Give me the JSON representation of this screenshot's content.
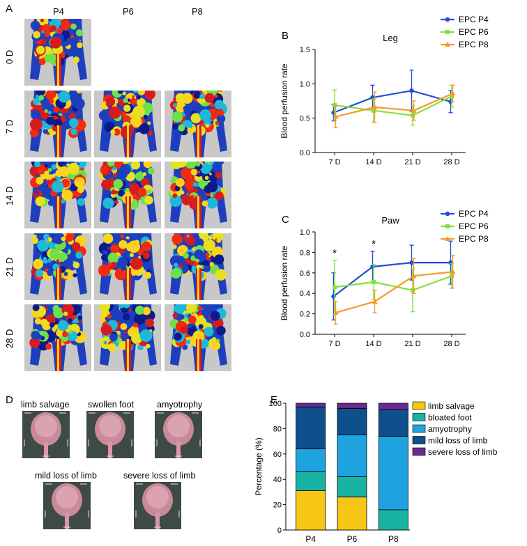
{
  "panels": {
    "A": {
      "letter": "A",
      "columns": [
        "P4",
        "P6",
        "P8"
      ],
      "rows": [
        "0 D",
        "7 D",
        "14 D",
        "21 D",
        "28 D"
      ]
    },
    "D": {
      "letter": "D",
      "labels": [
        "limb salvage",
        "swollen foot",
        "amyotrophy",
        "mild loss of limb",
        "severe loss of limb"
      ]
    }
  },
  "colors": {
    "p4": "#1f4fd6",
    "p6": "#86e03a",
    "p8": "#f79a2a",
    "limb_salvage": "#f7c615",
    "bloated_foot": "#17b3a3",
    "amyotrophy": "#1fa2e0",
    "mild_loss": "#0e4f8c",
    "severe_loss": "#6a2a8f"
  },
  "chart_data": [
    {
      "id": "B",
      "letter": "B",
      "type": "line",
      "title": "Leg",
      "ylabel": "Blood perfusion rate",
      "categories": [
        "7 D",
        "14 D",
        "21 D",
        "28 D"
      ],
      "ylim": [
        0,
        1.5
      ],
      "yticks": [
        "0.0",
        "0.5",
        "1.0",
        "1.5"
      ],
      "ytick_values": [
        0,
        0.5,
        1.0,
        1.5
      ],
      "legend": [
        "EPC P4",
        "EPC P6",
        "EPC P8"
      ],
      "annotations": [],
      "series": [
        {
          "name": "EPC P4",
          "color_key": "p4",
          "marker": "circle",
          "values": [
            0.58,
            0.8,
            0.9,
            0.74
          ],
          "errors": [
            0.12,
            0.18,
            0.3,
            0.16
          ]
        },
        {
          "name": "EPC P6",
          "color_key": "p6",
          "marker": "square",
          "values": [
            0.69,
            0.61,
            0.54,
            0.82
          ],
          "errors": [
            0.22,
            0.17,
            0.14,
            0.16
          ]
        },
        {
          "name": "EPC P8",
          "color_key": "p8",
          "marker": "triangle",
          "values": [
            0.52,
            0.66,
            0.61,
            0.86
          ],
          "errors": [
            0.16,
            0.22,
            0.14,
            0.12
          ]
        }
      ]
    },
    {
      "id": "C",
      "letter": "C",
      "type": "line",
      "title": "Paw",
      "ylabel": "Blood perfusion rate",
      "categories": [
        "7 D",
        "14 D",
        "21 D",
        "28 D"
      ],
      "ylim": [
        0,
        1.0
      ],
      "yticks": [
        "0.0",
        "0.2",
        "0.4",
        "0.6",
        "0.8",
        "1.0"
      ],
      "ytick_values": [
        0,
        0.2,
        0.4,
        0.6,
        0.8,
        1.0
      ],
      "legend": [
        "EPC P4",
        "EPC P6",
        "EPC P8"
      ],
      "annotations": [
        {
          "category": "7 D",
          "text": "*"
        },
        {
          "category": "14 D",
          "text": "*"
        }
      ],
      "series": [
        {
          "name": "EPC P4",
          "color_key": "p4",
          "marker": "circle",
          "values": [
            0.37,
            0.66,
            0.7,
            0.7
          ],
          "errors": [
            0.23,
            0.15,
            0.17,
            0.21
          ]
        },
        {
          "name": "EPC P6",
          "color_key": "p6",
          "marker": "square",
          "values": [
            0.46,
            0.51,
            0.43,
            0.57
          ],
          "errors": [
            0.26,
            0.17,
            0.21,
            0.12
          ]
        },
        {
          "name": "EPC P8",
          "color_key": "p8",
          "marker": "triangle",
          "values": [
            0.21,
            0.32,
            0.57,
            0.61
          ],
          "errors": [
            0.11,
            0.11,
            0.17,
            0.16
          ]
        }
      ]
    },
    {
      "id": "E",
      "letter": "E",
      "type": "bar",
      "stacked": true,
      "title": "",
      "ylabel": "Percentage (%)",
      "categories": [
        "P4",
        "P6",
        "P8"
      ],
      "ylim": [
        0,
        100
      ],
      "yticks": [
        "0",
        "20",
        "40",
        "60",
        "80",
        "100"
      ],
      "ytick_values": [
        0,
        20,
        40,
        60,
        80,
        100
      ],
      "legend": [
        "limb salvage",
        "bloated foot",
        "amyotrophy",
        "mild loss of limb",
        "severe loss of limb"
      ],
      "series": [
        {
          "name": "limb salvage",
          "color_key": "limb_salvage",
          "values": [
            31,
            26,
            0
          ]
        },
        {
          "name": "bloated foot",
          "color_key": "bloated_foot",
          "values": [
            15,
            16,
            16
          ]
        },
        {
          "name": "amyotrophy",
          "color_key": "amyotrophy",
          "values": [
            18,
            33,
            58
          ]
        },
        {
          "name": "mild loss of limb",
          "color_key": "mild_loss",
          "values": [
            33,
            21,
            21
          ]
        },
        {
          "name": "severe loss of limb",
          "color_key": "severe_loss",
          "values": [
            3,
            4,
            5
          ]
        }
      ]
    }
  ]
}
